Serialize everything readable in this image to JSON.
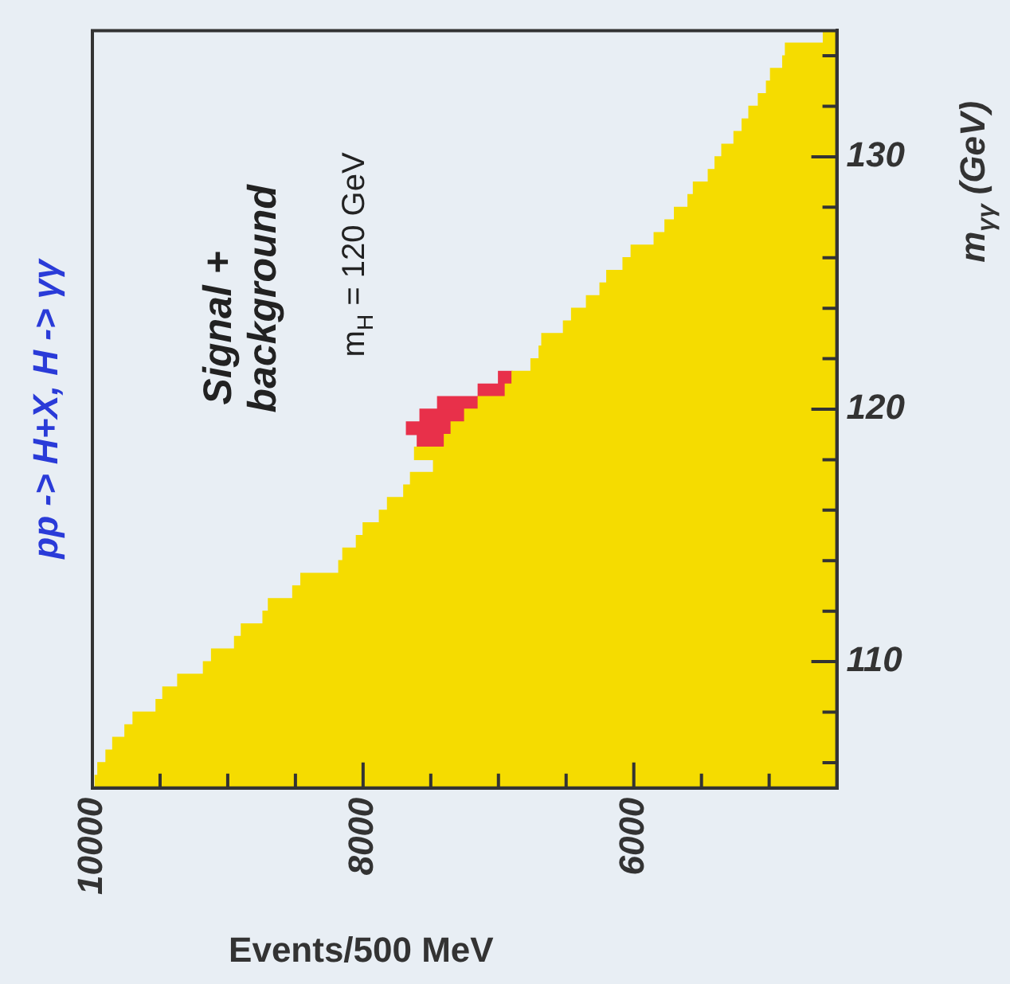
{
  "chart_data": {
    "type": "histogram",
    "title": "pp -> H+X, H -> γγ",
    "xlabel": "Events/500 MeV",
    "ylabel": "m$_{γγ}$ (GeV)",
    "annotations": [
      "Signal +\nbackground",
      "m$_{H}$ = 120 GeV"
    ],
    "orientation": "horizontal",
    "grid": false,
    "bins": [
      105,
      105.5,
      106,
      106.5,
      107,
      107.5,
      108,
      108.5,
      109,
      109.5,
      110,
      110.5,
      111,
      111.5,
      112,
      112.5,
      113,
      113.5,
      114,
      114.5,
      115,
      115.5,
      116,
      116.5,
      117,
      117.5,
      118,
      118.5,
      119,
      119.5,
      120,
      120.5,
      121,
      121.5,
      122,
      122.5,
      123,
      123.5,
      124,
      124.5,
      125,
      125.5,
      126,
      126.5,
      127,
      127.5,
      128,
      128.5,
      129,
      129.5,
      130,
      130.5,
      131,
      131.5,
      132,
      132.5,
      133,
      133.5,
      134,
      134.5,
      135
    ],
    "series": [
      {
        "color": "#f5dc00",
        "values": [
          9980,
          9960,
          9900,
          9850,
          9760,
          9700,
          9530,
          9480,
          9370,
          9180,
          9120,
          8950,
          8900,
          8740,
          8700,
          8520,
          8460,
          8180,
          8150,
          8050,
          8000,
          7880,
          7820,
          7700,
          7650,
          7480,
          7620,
          7400,
          7350,
          7250,
          7150,
          6950,
          6900,
          6760,
          6700,
          6680,
          6520,
          6460,
          6350,
          6250,
          6200,
          6080,
          6020,
          5850,
          5770,
          5700,
          5600,
          5560,
          5450,
          5400,
          5350,
          5260,
          5200,
          5150,
          5080,
          5020,
          4990,
          4900,
          4880,
          4600
        ]
      },
      {
        "color": "#e8304a",
        "base": [
          null,
          null,
          null,
          null,
          null,
          null,
          null,
          null,
          null,
          null,
          null,
          null,
          null,
          null,
          null,
          null,
          null,
          null,
          null,
          null,
          null,
          null,
          null,
          null,
          null,
          null,
          null,
          7400,
          7350,
          7250,
          7150,
          6950,
          6900,
          null,
          null,
          null,
          null,
          null,
          null,
          null,
          null,
          null,
          null,
          null,
          null,
          null,
          null,
          null,
          null,
          null,
          null,
          null,
          null,
          null,
          null,
          null,
          null,
          null,
          null,
          null
        ],
        "values": [
          null,
          null,
          null,
          null,
          null,
          null,
          null,
          null,
          null,
          null,
          null,
          null,
          null,
          null,
          null,
          null,
          null,
          null,
          null,
          null,
          null,
          null,
          null,
          null,
          null,
          null,
          null,
          200,
          330,
          330,
          300,
          200,
          100,
          null,
          null,
          null,
          null,
          null,
          null,
          null,
          null,
          null,
          null,
          null,
          null,
          null,
          null,
          null,
          null,
          null,
          null,
          null,
          null,
          null,
          null,
          null,
          null,
          null,
          null,
          null
        ]
      }
    ],
    "xlim": [
      10000,
      4500
    ],
    "xticks": [
      10000,
      {
        "value": 9500,
        "label": null
      },
      {
        "value": 9000,
        "label": null
      },
      {
        "value": 8500,
        "label": null
      },
      8000,
      {
        "value": 7500,
        "label": null
      },
      {
        "value": 7000,
        "label": null
      },
      {
        "value": 6500,
        "label": null
      },
      6000,
      {
        "value": 5500,
        "label": null
      },
      {
        "value": 5000,
        "label": null
      }
    ],
    "ylim": [
      105,
      135
    ],
    "yticks": [
      {
        "value": 106,
        "label": null
      },
      {
        "value": 108,
        "label": null
      },
      110,
      {
        "value": 112,
        "label": null
      },
      {
        "value": 114,
        "label": null
      },
      {
        "value": 116,
        "label": null
      },
      {
        "value": 118,
        "label": null
      },
      120,
      {
        "value": 122,
        "label": null
      },
      {
        "value": 124,
        "label": null
      },
      {
        "value": 126,
        "label": null
      },
      {
        "value": 128,
        "label": null
      },
      130,
      {
        "value": 132,
        "label": null
      },
      {
        "value": 134,
        "label": null
      }
    ]
  }
}
